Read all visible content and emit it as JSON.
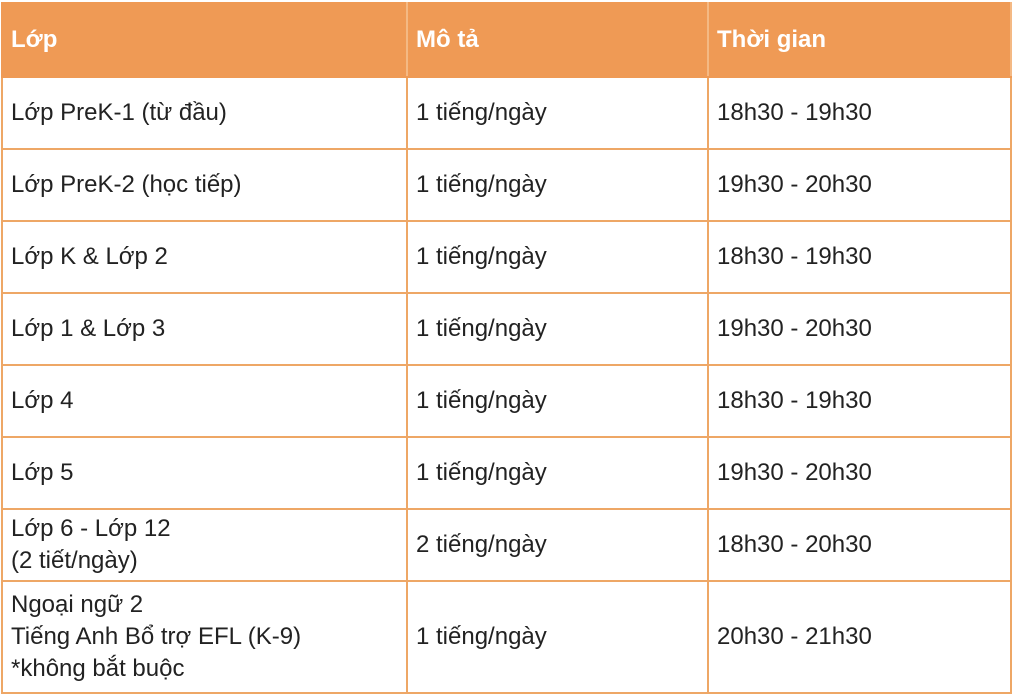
{
  "table": {
    "header": [
      "Lớp",
      "Mô tả",
      "Thời gian"
    ],
    "rows": [
      [
        "Lớp PreK-1 (từ đầu)",
        "1 tiếng/ngày",
        "18h30 - 19h30"
      ],
      [
        "Lớp PreK-2 (học tiếp)",
        "1 tiếng/ngày",
        "19h30 - 20h30"
      ],
      [
        "Lớp K & Lớp 2",
        "1 tiếng/ngày",
        "18h30 - 19h30"
      ],
      [
        "Lớp 1 & Lớp 3",
        "1 tiếng/ngày",
        "19h30 - 20h30"
      ],
      [
        "Lớp 4",
        "1 tiếng/ngày",
        "18h30 - 19h30"
      ],
      [
        "Lớp 5",
        "1 tiếng/ngày",
        "19h30 - 20h30"
      ],
      [
        [
          "Lớp 6 - Lớp 12",
          "(2 tiết/ngày)"
        ],
        "2 tiếng/ngày",
        "18h30 - 20h30"
      ],
      [
        [
          "Ngoại ngữ 2",
          "Tiếng Anh Bổ trợ EFL (K-9)",
          "*không bắt buộc"
        ],
        "1 tiếng/ngày",
        "20h30 - 21h30"
      ]
    ]
  }
}
